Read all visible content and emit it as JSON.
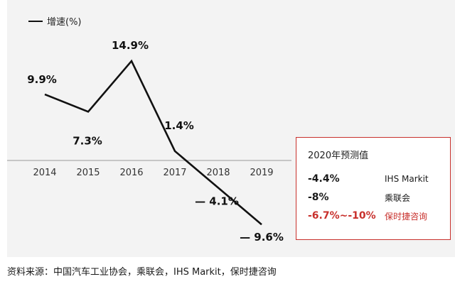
{
  "chart_data": {
    "type": "line",
    "categories": [
      "2014",
      "2015",
      "2016",
      "2017",
      "2018",
      "2019"
    ],
    "series": [
      {
        "name": "增速(%)",
        "values": [
          9.9,
          7.3,
          14.9,
          1.4,
          -4.1,
          -9.6
        ],
        "labels": [
          "9.9%",
          "7.3%",
          "14.9%",
          "1.4%",
          "— 4.1%",
          "— 9.6%"
        ]
      }
    ],
    "title": "",
    "xlabel": "",
    "ylabel": "",
    "ylim": [
      -12,
      17
    ],
    "grid": false,
    "legend_placement": "top-left",
    "colors": {
      "line": "#111111",
      "axis": "#999999",
      "accent": "#c8302c",
      "panel": "#f3f3f3"
    }
  },
  "forecast": {
    "title": "2020年预测值",
    "rows": [
      {
        "value": "-4.4%",
        "source": "IHS Markit",
        "highlight": false
      },
      {
        "value": "-8%",
        "source": "乘联会",
        "highlight": false
      },
      {
        "value": "-6.7%~-10%",
        "source": "保时捷咨询",
        "highlight": true
      }
    ]
  },
  "source_note": "资料来源：中国汽车工业协会，乘联会，IHS Markit，保时捷咨询"
}
